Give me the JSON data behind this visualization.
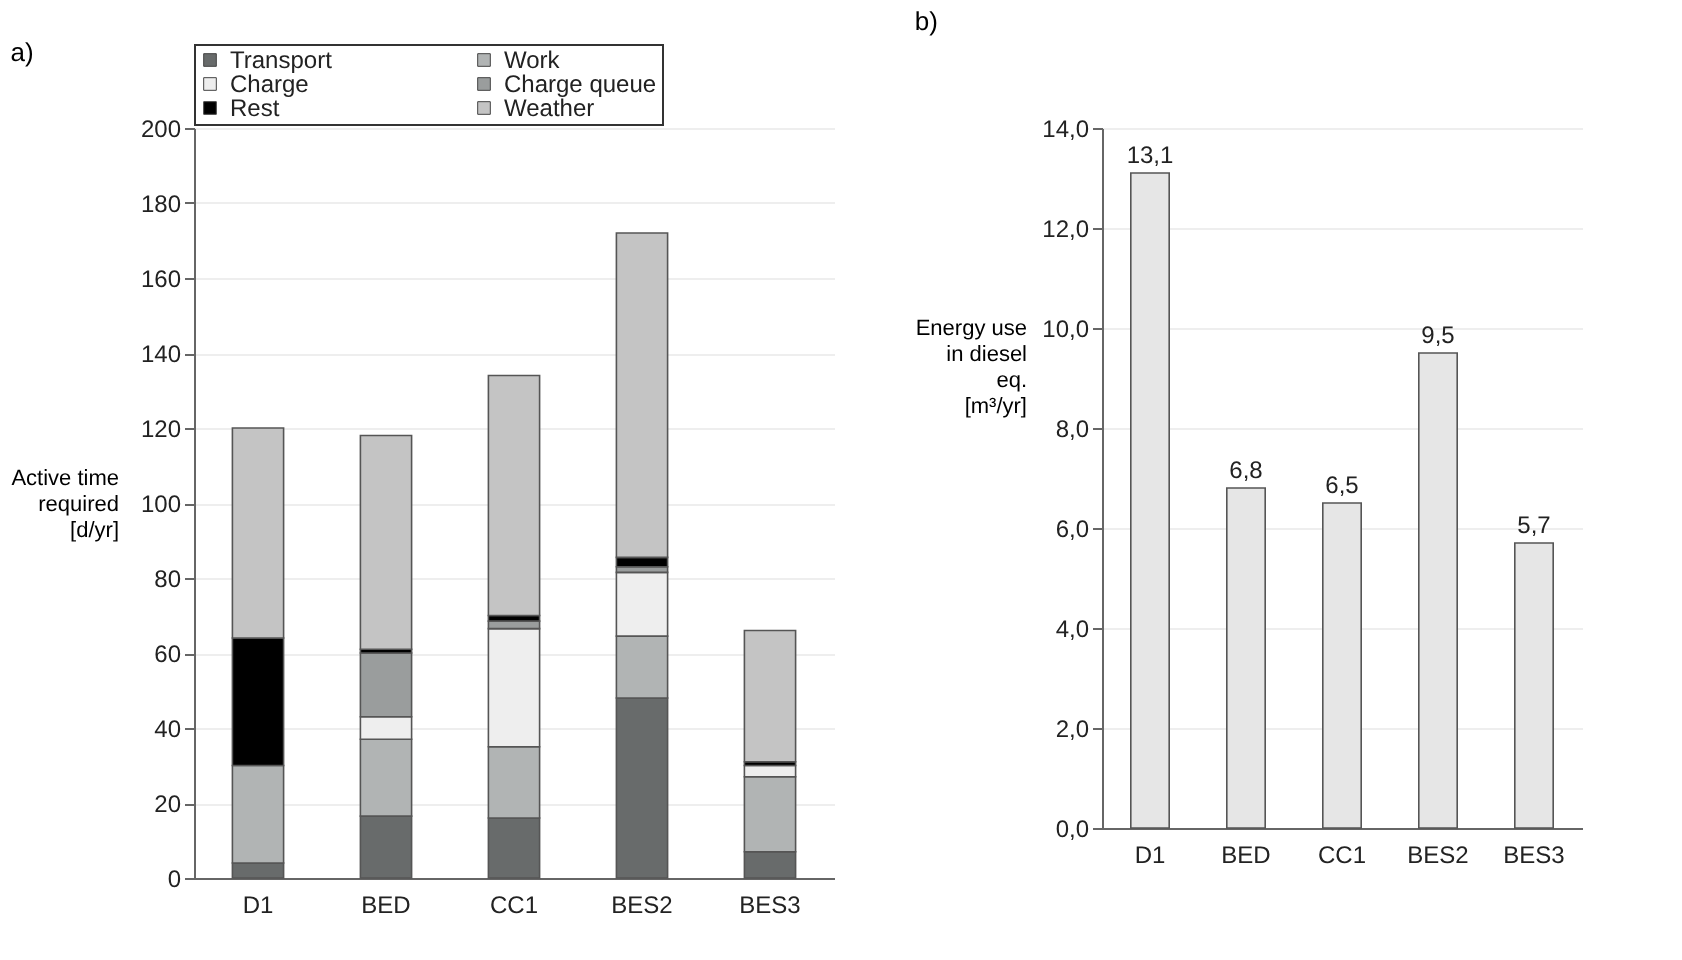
{
  "chart_data": [
    {
      "type": "bar",
      "title": "a)",
      "ylabel": "Active time\nrequired\n[d/yr]",
      "categories": [
        "D1",
        "BED",
        "CC1",
        "BES2",
        "BES3"
      ],
      "stacked": true,
      "legend": "top",
      "grid": "y",
      "ylim": [
        0,
        200
      ],
      "yticks": [
        0,
        20,
        40,
        60,
        80,
        100,
        120,
        140,
        160,
        180,
        200
      ],
      "series": [
        {
          "name": "Transport",
          "color": "#686b6b",
          "values": [
            4,
            16.5,
            16,
            48,
            7
          ]
        },
        {
          "name": "Work",
          "color": "#b1b4b4",
          "values": [
            26,
            20.5,
            19,
            16.5,
            20
          ]
        },
        {
          "name": "Charge",
          "color": "#eeeeee",
          "values": [
            0,
            6,
            31.5,
            17,
            3
          ]
        },
        {
          "name": "Charge queue",
          "color": "#9a9d9d",
          "values": [
            0,
            17,
            2,
            1.5,
            0
          ]
        },
        {
          "name": "Rest",
          "color": "#000000",
          "values": [
            34,
            1,
            1.5,
            2.5,
            1
          ]
        },
        {
          "name": "Weather",
          "color": "#c4c4c4",
          "values": [
            56,
            57,
            64,
            86.5,
            35
          ]
        }
      ]
    },
    {
      "type": "bar",
      "title": "b)",
      "ylabel": "Energy use\nin diesel\neq.\n[m³/yr]",
      "categories": [
        "D1",
        "BED",
        "CC1",
        "BES2",
        "BES3"
      ],
      "grid": "y",
      "ylim": [
        0,
        14
      ],
      "yticks": [
        {
          "value": 0,
          "label": "0,0"
        },
        {
          "value": 2,
          "label": "2,0"
        },
        {
          "value": 4,
          "label": "4,0"
        },
        {
          "value": 6,
          "label": "6,0"
        },
        {
          "value": 8,
          "label": "8,0"
        },
        {
          "value": 10,
          "label": "10,0"
        },
        {
          "value": 12,
          "label": "12,0"
        },
        {
          "value": 14,
          "label": "14,0"
        }
      ],
      "series": [
        {
          "color": "#e6e6e6",
          "values": [
            13.1,
            6.8,
            6.5,
            9.5,
            5.7
          ],
          "value_labels": [
            "13,1",
            "6,8",
            "6,5",
            "9,5",
            "5,7"
          ]
        }
      ]
    }
  ]
}
